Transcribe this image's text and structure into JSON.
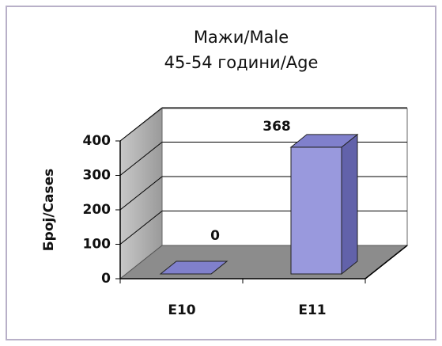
{
  "chart_data": {
    "type": "bar3d",
    "title": "Мажи/Male",
    "subtitle": "45-54 години/Age",
    "y_label": "Број/Cases",
    "categories": [
      "E10",
      "E11"
    ],
    "values": [
      0,
      368
    ],
    "value_labels": [
      "0",
      "368"
    ],
    "color": "#9999dd",
    "ylim": [
      0,
      400
    ],
    "yticks": [
      0,
      100,
      200,
      300,
      400
    ],
    "grid": true
  }
}
